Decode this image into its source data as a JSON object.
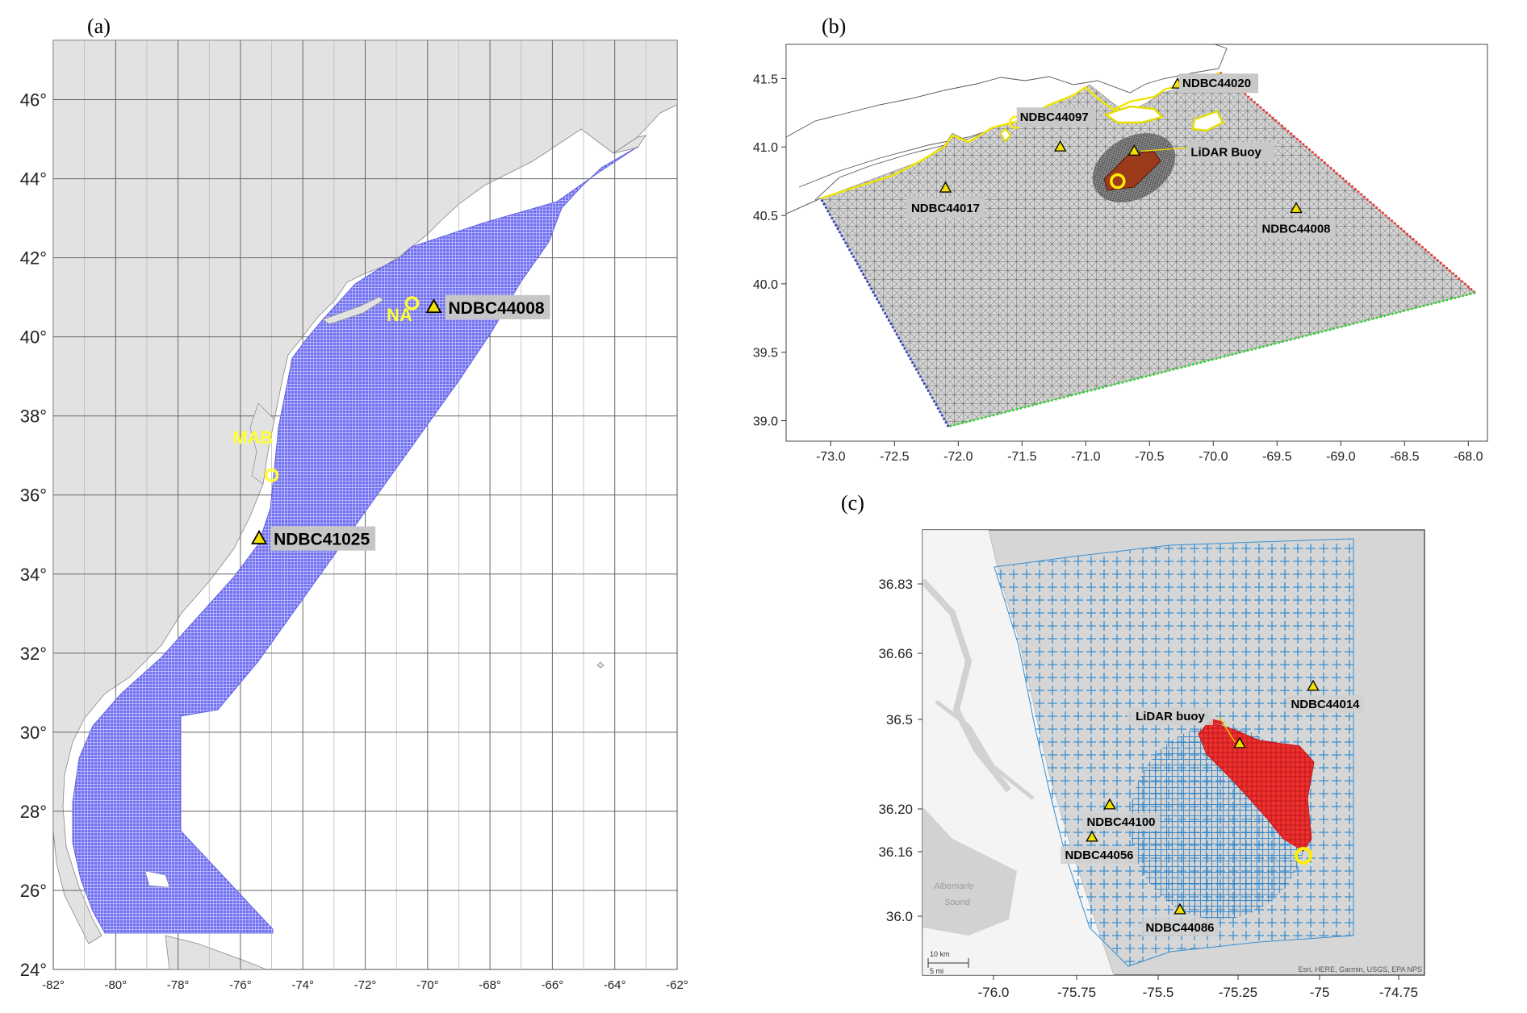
{
  "panels": {
    "a": {
      "label": "(a)",
      "lon_range": [
        -82,
        -62
      ],
      "lat_range": [
        24,
        47.5
      ],
      "lon_ticks": [
        "-82°",
        "-80°",
        "-78°",
        "-76°",
        "-74°",
        "-72°",
        "-70°",
        "-68°",
        "-66°",
        "-64°",
        "-62°"
      ],
      "lat_ticks": [
        "24°",
        "26°",
        "28°",
        "30°",
        "32°",
        "34°",
        "36°",
        "38°",
        "40°",
        "42°",
        "44°",
        "46°"
      ],
      "region_labels": [
        {
          "text": "NA",
          "lon": -70.9,
          "lat": 40.4
        },
        {
          "text": "MAB",
          "lon": -75.6,
          "lat": 37.3
        }
      ],
      "stations": [
        {
          "name": "NDBC44008",
          "lon": -69.8,
          "lat": 40.75
        },
        {
          "name": "NDBC41025",
          "lon": -75.4,
          "lat": 34.9
        }
      ],
      "sites": [
        {
          "lon": -70.5,
          "lat": 40.85
        },
        {
          "lon": -75.0,
          "lat": 36.5
        }
      ],
      "colors": {
        "grid_fill": "#6f6ff2",
        "land": "#e2e2e2",
        "ocean": "#ffffff",
        "marker": "#ffff33"
      }
    },
    "b": {
      "label": "(b)",
      "lon_range": [
        -73.35,
        -67.85
      ],
      "lat_range": [
        38.85,
        41.75
      ],
      "x_ticks": [
        "-73.0",
        "-72.5",
        "-72.0",
        "-71.5",
        "-71.0",
        "-70.5",
        "-70.0",
        "-69.5",
        "-69.0",
        "-68.5",
        "-68.0"
      ],
      "y_ticks": [
        "39.0",
        "39.5",
        "40.0",
        "40.5",
        "41.0",
        "41.5"
      ],
      "stations": [
        {
          "name": "NDBC44020",
          "lon": -70.28,
          "lat": 41.46
        },
        {
          "name": "NDBC44097",
          "lon": -71.2,
          "lat": 41.0
        },
        {
          "name": "LiDAR Buoy",
          "lon": -70.62,
          "lat": 40.97
        },
        {
          "name": "NDBC44017",
          "lon": -72.1,
          "lat": 40.7
        },
        {
          "name": "NDBC44008",
          "lon": -69.35,
          "lat": 40.55
        }
      ],
      "site": {
        "lon": -70.75,
        "lat": 40.75
      },
      "boundary_colors": {
        "north": "#ff2020",
        "east": "#22dd22",
        "west": "#2030cc",
        "coast": "#ffee00"
      }
    },
    "c": {
      "label": "(c)",
      "x_ticks": [
        "-76.0",
        "-75.75",
        "-75.5",
        "-75.25",
        "-75",
        "-74.75"
      ],
      "y_ticks": [
        "36.0",
        "36.16",
        "36.20",
        "36.5",
        "36.66",
        "36.83"
      ],
      "stations": [
        {
          "name": "NDBC44014",
          "label_pos": "below"
        },
        {
          "name": "LiDAR buoy",
          "label_pos": "left"
        },
        {
          "name": "NDBC44100",
          "label_pos": "below"
        },
        {
          "name": "NDBC44056",
          "label_pos": "below"
        },
        {
          "name": "NDBC44086",
          "label_pos": "below"
        }
      ],
      "map_text": {
        "sound_line1": "Albemarle",
        "sound_line2": "Sound",
        "scale_km": "10 km",
        "scale_mi": "5 mi"
      },
      "attribution": "Esri, HERE, Garmin, USGS, EPA NPS",
      "colors": {
        "mesh": "#2f88cc",
        "turbines": "#e02020"
      }
    }
  }
}
